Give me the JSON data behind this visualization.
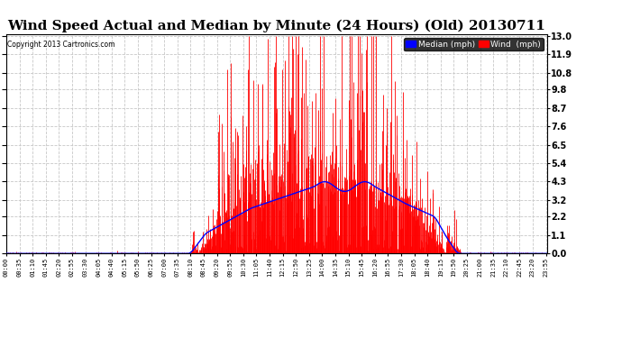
{
  "title": "Wind Speed Actual and Median by Minute (24 Hours) (Old) 20130711",
  "copyright": "Copyright 2013 Cartronics.com",
  "yticks": [
    0.0,
    1.1,
    2.2,
    3.2,
    4.3,
    5.4,
    6.5,
    7.6,
    8.7,
    9.8,
    10.8,
    11.9,
    13.0
  ],
  "ymax": 13.0,
  "ymin": 0.0,
  "background_color": "#ffffff",
  "plot_bg_color": "#ffffff",
  "grid_color": "#c8c8c8",
  "wind_color": "#ff0000",
  "median_color": "#0000ff",
  "title_fontsize": 11,
  "legend_median_label": "Median (mph)",
  "legend_wind_label": "Wind  (mph)",
  "minutes_per_day": 1440,
  "tick_interval": 35
}
